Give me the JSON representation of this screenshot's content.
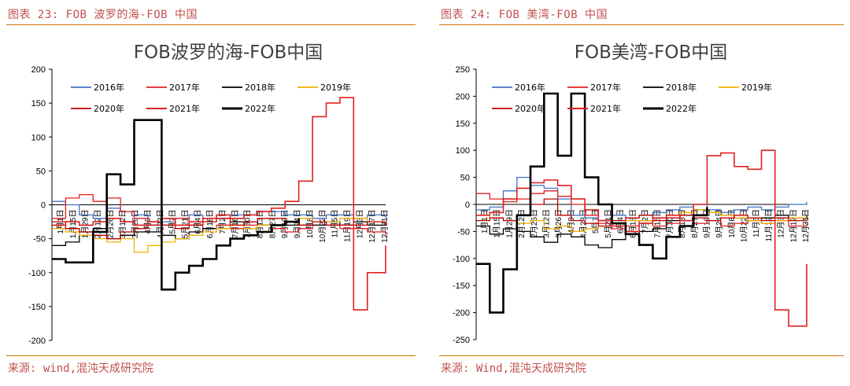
{
  "figures": [
    {
      "label": "图表 23: FOB 波罗的海-FOB 中国",
      "source": "来源: wind,混沌天成研究院",
      "chart_data": {
        "type": "line",
        "title": "FOB波罗的海-FOB中国",
        "ylim": [
          -200,
          200
        ],
        "yticks": [
          200,
          150,
          100,
          50,
          0,
          -50,
          -100,
          -150,
          -200
        ],
        "xlabel": "",
        "ylabel": "",
        "grid": false,
        "legend_position": "top",
        "xtick_labels": [
          "1月1日",
          "1月15日",
          "1月29日",
          "2月12日",
          "2月26日",
          "3月12日",
          "3月26日",
          "4月9日",
          "4月23日",
          "5月7日",
          "5月21日",
          "6月4日",
          "6月18日",
          "7月2日",
          "7月16日",
          "7月30日",
          "8月13日",
          "8月27日",
          "9月10日",
          "9月24日",
          "10月8日",
          "10月22日",
          "11月5日",
          "11月19日",
          "12月3日",
          "12月17日",
          "12月31日"
        ],
        "x": [
          0,
          15,
          30,
          45,
          60,
          75,
          90,
          105,
          120,
          135,
          150,
          165,
          180,
          195,
          210,
          225,
          240,
          255,
          270,
          285,
          300,
          315,
          330,
          345,
          365
        ],
        "series": [
          {
            "name": "2016年",
            "color": "#4472c4",
            "width": 1.3,
            "values": [
              5,
              0,
              -15,
              -20,
              -5,
              -10,
              -15,
              -30,
              -25,
              -20,
              -15,
              -20,
              -20,
              -15,
              -15,
              -10,
              -10,
              -15,
              -15,
              -20,
              -15,
              -15,
              -20,
              -15,
              -20
            ]
          },
          {
            "name": "2017年",
            "color": "#e02020",
            "width": 1.3,
            "values": [
              -20,
              10,
              15,
              5,
              10,
              -10,
              -20,
              -25,
              -30,
              -20,
              -30,
              -35,
              -30,
              -35,
              -30,
              -30,
              -35,
              -40,
              -35,
              -30,
              -30,
              -35,
              -35,
              -40,
              -45
            ]
          },
          {
            "name": "2018年",
            "color": "#000000",
            "width": 1.3,
            "values": [
              -60,
              -55,
              -40,
              -35,
              -50,
              -45,
              -40,
              -40,
              -45,
              -50,
              -40,
              -35,
              -35,
              -25,
              -25,
              -30,
              -30,
              -30,
              -30,
              -30,
              -25,
              -30,
              -25,
              -30,
              -30
            ]
          },
          {
            "name": "2019年",
            "color": "#f0b000",
            "width": 1.3,
            "values": [
              -35,
              -40,
              -45,
              -50,
              -55,
              -50,
              -70,
              -60,
              -55,
              -50,
              -45,
              -40,
              -35,
              -30,
              -35,
              -30,
              -30,
              -25,
              -20,
              -25,
              -25,
              -20,
              -20,
              -25,
              -25
            ]
          },
          {
            "name": "2020年",
            "color": "#c00000",
            "width": 1.3,
            "values": [
              -25,
              -35,
              -40,
              -45,
              -50,
              -40,
              -35,
              -30,
              -30,
              -35,
              -30,
              -25,
              -20,
              -30,
              -25,
              -20,
              -20,
              -25,
              -30,
              -25,
              -30,
              -30,
              -30,
              -25,
              -30
            ]
          },
          {
            "name": "2021年",
            "color": "#e02020",
            "width": 1.6,
            "values": [
              -30,
              -25,
              -30,
              -25,
              -20,
              -25,
              -30,
              -25,
              -20,
              -30,
              -25,
              -20,
              -15,
              -20,
              -15,
              -10,
              -5,
              5,
              35,
              130,
              150,
              158,
              -155,
              -100,
              -60
            ]
          },
          {
            "name": "2022年",
            "color": "#000000",
            "width": 2.6,
            "values": [
              -80,
              -85,
              -85,
              -40,
              45,
              30,
              125,
              125,
              -125,
              -100,
              -90,
              -80,
              -60,
              -50,
              -45,
              -40,
              -30,
              -25,
              -20,
              null,
              null,
              null,
              null,
              null,
              null
            ]
          }
        ]
      }
    },
    {
      "label": "图表 24: FOB 美湾-FOB 中国",
      "source": "来源: Wind,混沌天成研究院",
      "chart_data": {
        "type": "line",
        "title": "FOB美湾-FOB中国",
        "ylim": [
          -250,
          250
        ],
        "yticks": [
          250,
          200,
          150,
          100,
          50,
          0,
          -50,
          -100,
          -150,
          -200,
          -250
        ],
        "xlabel": "",
        "ylabel": "",
        "grid": false,
        "legend_position": "top",
        "xtick_labels": [
          "1月1日",
          "1月15日",
          "1月29日",
          "2月12日",
          "2月26日",
          "3月12日",
          "3月26日",
          "4月9日",
          "4月23日",
          "5月7日",
          "5月21日",
          "6月4日",
          "6月18日",
          "7月2日",
          "7月16日",
          "7月30日",
          "8月13日",
          "8月27日",
          "9月10日",
          "9月24日",
          "10月8日",
          "10月22日",
          "11月5日",
          "11月19日",
          "12月3日",
          "12月17日",
          "12月31日"
        ],
        "x": [
          0,
          15,
          30,
          45,
          60,
          75,
          90,
          105,
          120,
          135,
          150,
          165,
          180,
          195,
          210,
          225,
          240,
          255,
          270,
          285,
          300,
          315,
          330,
          345,
          365
        ],
        "series": [
          {
            "name": "2016年",
            "color": "#4472c4",
            "width": 1.3,
            "values": [
              -10,
              -5,
              25,
              50,
              35,
              30,
              10,
              -20,
              -25,
              -30,
              -20,
              -25,
              -20,
              -15,
              -10,
              -5,
              0,
              -10,
              -15,
              -10,
              -5,
              -10,
              -5,
              0,
              5
            ]
          },
          {
            "name": "2017年",
            "color": "#e02020",
            "width": 1.3,
            "values": [
              20,
              10,
              5,
              10,
              20,
              25,
              15,
              0,
              -20,
              -35,
              -45,
              -40,
              -30,
              -40,
              -35,
              -30,
              -35,
              -30,
              -40,
              -35,
              -30,
              -35,
              -30,
              -40,
              -35
            ]
          },
          {
            "name": "2018年",
            "color": "#000000",
            "width": 1.3,
            "values": [
              -40,
              -55,
              -45,
              -50,
              -60,
              -70,
              -55,
              -60,
              -75,
              -80,
              -65,
              -55,
              -50,
              -45,
              -30,
              -20,
              -10,
              -15,
              -20,
              -25,
              -30,
              -25,
              -20,
              -25,
              -20
            ]
          },
          {
            "name": "2019年",
            "color": "#f0b000",
            "width": 1.3,
            "values": [
              -20,
              -25,
              -30,
              -35,
              -30,
              -45,
              -40,
              -50,
              -45,
              -40,
              -35,
              -30,
              -30,
              -25,
              -20,
              -15,
              -10,
              -15,
              -20,
              -25,
              -30,
              -35,
              -30,
              -25,
              -25
            ]
          },
          {
            "name": "2020年",
            "color": "#c00000",
            "width": 1.3,
            "values": [
              -30,
              -25,
              -30,
              -20,
              0,
              10,
              -20,
              -30,
              -35,
              -40,
              -30,
              -25,
              -20,
              -30,
              -25,
              -20,
              -25,
              -30,
              -25,
              -20,
              -25,
              -30,
              -25,
              -30,
              -30
            ]
          },
          {
            "name": "2021年",
            "color": "#e02020",
            "width": 1.6,
            "values": [
              -20,
              -15,
              10,
              30,
              40,
              45,
              35,
              10,
              -10,
              -30,
              -40,
              -50,
              -35,
              -25,
              -20,
              -30,
              0,
              90,
              95,
              70,
              65,
              100,
              -195,
              -225,
              -110
            ]
          },
          {
            "name": "2022年",
            "color": "#000000",
            "width": 2.6,
            "values": [
              -110,
              -200,
              -120,
              -20,
              70,
              205,
              90,
              205,
              50,
              0,
              -35,
              -55,
              -75,
              -100,
              -60,
              -40,
              -20,
              -5,
              null,
              null,
              null,
              null,
              null,
              null,
              null
            ]
          }
        ]
      }
    }
  ]
}
